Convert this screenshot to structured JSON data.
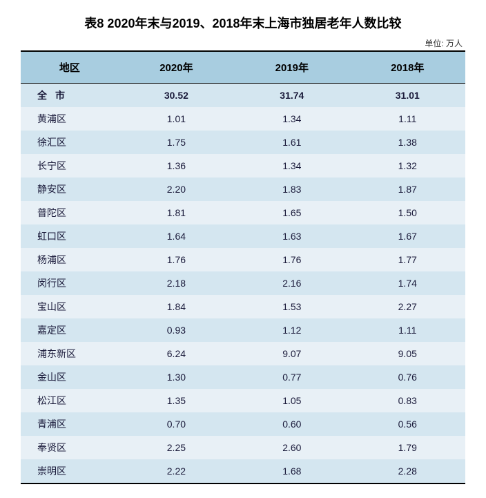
{
  "table": {
    "title": "表8 2020年末与2019、2018年末上海市独居老年人数比较",
    "unit": "单位: 万人",
    "columns": [
      "地区",
      "2020年",
      "2019年",
      "2018年"
    ],
    "total_row": {
      "region": "全市",
      "y2020": "30.52",
      "y2019": "31.74",
      "y2018": "31.01"
    },
    "rows": [
      {
        "region": "黄浦区",
        "y2020": "1.01",
        "y2019": "1.34",
        "y2018": "1.11"
      },
      {
        "region": "徐汇区",
        "y2020": "1.75",
        "y2019": "1.61",
        "y2018": "1.38"
      },
      {
        "region": "长宁区",
        "y2020": "1.36",
        "y2019": "1.34",
        "y2018": "1.32"
      },
      {
        "region": "静安区",
        "y2020": "2.20",
        "y2019": "1.83",
        "y2018": "1.87"
      },
      {
        "region": "普陀区",
        "y2020": "1.81",
        "y2019": "1.65",
        "y2018": "1.50"
      },
      {
        "region": "虹口区",
        "y2020": "1.64",
        "y2019": "1.63",
        "y2018": "1.67"
      },
      {
        "region": "杨浦区",
        "y2020": "1.76",
        "y2019": "1.76",
        "y2018": "1.77"
      },
      {
        "region": "闵行区",
        "y2020": "2.18",
        "y2019": "2.16",
        "y2018": "1.74"
      },
      {
        "region": "宝山区",
        "y2020": "1.84",
        "y2019": "1.53",
        "y2018": "2.27"
      },
      {
        "region": "嘉定区",
        "y2020": "0.93",
        "y2019": "1.12",
        "y2018": "1.11"
      },
      {
        "region": "浦东新区",
        "y2020": "6.24",
        "y2019": "9.07",
        "y2018": "9.05"
      },
      {
        "region": "金山区",
        "y2020": "1.30",
        "y2019": "0.77",
        "y2018": "0.76"
      },
      {
        "region": "松江区",
        "y2020": "1.35",
        "y2019": "1.05",
        "y2018": "0.83"
      },
      {
        "region": "青浦区",
        "y2020": "0.70",
        "y2019": "0.60",
        "y2018": "0.56"
      },
      {
        "region": "奉贤区",
        "y2020": "2.25",
        "y2019": "2.60",
        "y2018": "1.79"
      },
      {
        "region": "崇明区",
        "y2020": "2.22",
        "y2019": "1.68",
        "y2018": "2.28"
      }
    ],
    "header_bg": "#a8cde0",
    "row_odd_bg": "#d4e6f0",
    "row_even_bg": "#e8f0f6",
    "border_color": "#000000",
    "text_color": "#1a1a3a"
  }
}
